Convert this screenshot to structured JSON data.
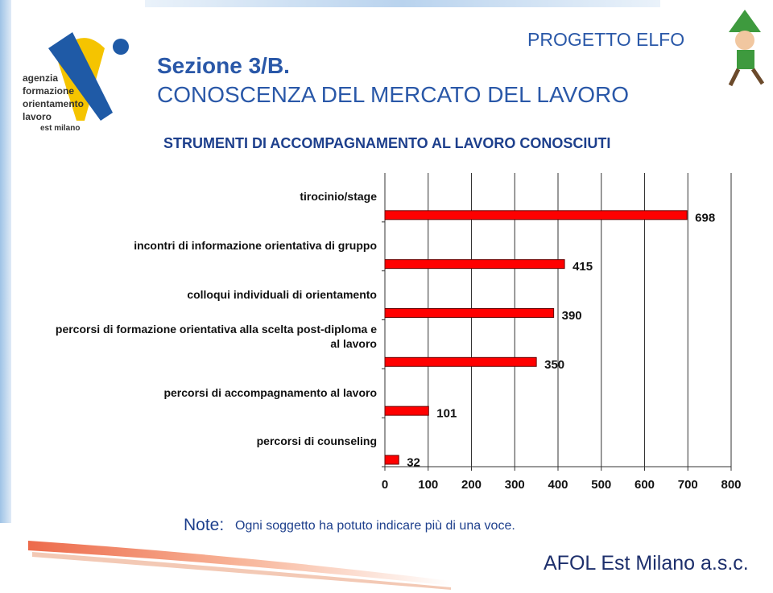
{
  "header": {
    "project": "PROGETTO ELFO",
    "section": "Sezione 3/B.",
    "subtitle": "CONOSCENZA DEL MERCATO DEL LAVORO"
  },
  "logo": {
    "lines": [
      "agenzia",
      "formazione",
      "orientamento",
      "lavoro",
      "est milano"
    ]
  },
  "chart_data": {
    "type": "barh",
    "title": "STRUMENTI DI ACCOMPAGNAMENTO AL LAVORO CONOSCIUTI",
    "categories": [
      "tirocinio/stage",
      "incontri di informazione orientativa di gruppo",
      "colloqui individuali di orientamento",
      "percorsi di formazione orientativa alla scelta post-diploma e al lavoro",
      "percorsi di accompagnamento al lavoro",
      "percorsi di counseling"
    ],
    "values": [
      698,
      415,
      390,
      350,
      101,
      32
    ],
    "color": "#ff0000",
    "xlim": [
      0,
      800
    ],
    "xticks": [
      0,
      100,
      200,
      300,
      400,
      500,
      600,
      700,
      800
    ],
    "grid": true
  },
  "note": {
    "label": "Note:",
    "text": "Ogni soggetto ha potuto indicare più di una voce."
  },
  "footer": "AFOL Est Milano a.s.c."
}
